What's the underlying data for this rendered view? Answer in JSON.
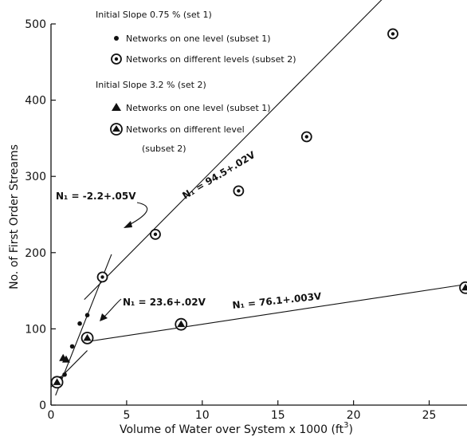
{
  "chart_data": {
    "type": "scatter",
    "xlabel": "Volume of Water over System x 1000 (ft",
    "xlabel_exponent": "3",
    "xlabel_suffix": ")",
    "ylabel": "No. of First Order Streams",
    "xlim": [
      0,
      27.5
    ],
    "ylim": [
      0,
      500
    ],
    "xticks": [
      0,
      5,
      10,
      15,
      20,
      25
    ],
    "yticks": [
      0,
      100,
      200,
      300,
      400,
      500
    ],
    "grid": false,
    "legend": {
      "position": "top-center",
      "set1_heading": "Initial Slope 0.75 % (set 1)",
      "set1_subset1": "Networks on one level (subset 1)",
      "set1_subset2": "Networks on different levels (subset 2)",
      "set2_heading": "Initial Slope 3.2 % (set 2)",
      "set2_subset1": "Networks on one level (subset 1)",
      "set2_subset2_line1": "Networks on different level",
      "set2_subset2_line2": "(subset 2)"
    },
    "series": [
      {
        "marker": "dot",
        "points": [
          [
            0.4,
            30
          ],
          [
            0.9,
            40
          ],
          [
            1.4,
            77
          ],
          [
            1.9,
            107
          ],
          [
            2.4,
            118
          ],
          [
            0.6,
            35
          ]
        ]
      },
      {
        "marker": "circled-dot",
        "points": [
          [
            3.4,
            168
          ],
          [
            6.9,
            224
          ],
          [
            12.4,
            281
          ],
          [
            16.9,
            352
          ],
          [
            22.6,
            487
          ]
        ]
      },
      {
        "marker": "triangle",
        "points": [
          [
            0.4,
            33
          ],
          [
            0.8,
            62
          ],
          [
            1.0,
            60
          ]
        ]
      },
      {
        "marker": "circled-triangle",
        "points": [
          [
            0.4,
            30
          ],
          [
            2.4,
            88
          ],
          [
            8.6,
            106
          ],
          [
            27.4,
            154
          ]
        ]
      }
    ],
    "fit_lines": [
      {
        "equation": "N₁ = -2.2+.05V",
        "x": [
          0.3,
          4.0
        ]
      },
      {
        "equation": "N₁ = 94.5+.02V",
        "x": [
          2.2,
          22.7
        ]
      },
      {
        "equation": "N₁ = 23.6+.02V",
        "x": [
          0.0,
          2.4
        ]
      },
      {
        "equation": "N₁ = 76.1+.003V",
        "x": [
          2.4,
          27.5
        ]
      }
    ],
    "colors": {
      "ink": "#111111",
      "background": "#ffffff"
    }
  }
}
